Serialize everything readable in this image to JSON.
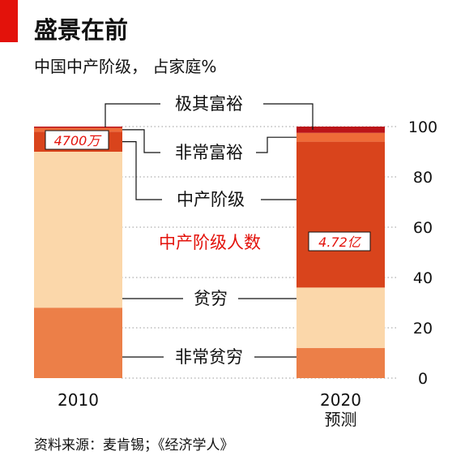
{
  "title": "盛景在前",
  "subtitle": "中国中产阶级，  占家庭%",
  "source": "资料来源：麦肯锡；《经济学人》",
  "colors": {
    "accent": "#e3120b",
    "very_poor": "#ec7f48",
    "poor": "#fbd7aa",
    "middle_class": "#d9441c",
    "very_affluent": "#ee6b38",
    "affluent": "#bb1419",
    "highlight_text": "#e3120b"
  },
  "chart_data": {
    "type": "bar",
    "stacked": true,
    "categories": [
      "2010",
      "2020\n预测"
    ],
    "category_labels": [
      [
        "2010"
      ],
      [
        "2020",
        "预测"
      ]
    ],
    "series": [
      {
        "name": "非常贫穷",
        "key": "very_poor",
        "values": [
          28,
          12
        ]
      },
      {
        "name": "贫穷",
        "key": "poor",
        "values": [
          62,
          24
        ]
      },
      {
        "name": "中产阶级",
        "key": "middle_class",
        "values": [
          8,
          58
        ]
      },
      {
        "name": "非常富裕",
        "key": "very_affluent",
        "values": [
          1.5,
          3.5
        ]
      },
      {
        "name": "极其富裕",
        "key": "affluent",
        "values": [
          0.5,
          2.5
        ]
      }
    ],
    "annotations": [
      {
        "label": "中产阶级人数",
        "values": [
          "4700万",
          "4.72亿"
        ]
      }
    ],
    "yticks": [
      0,
      20,
      40,
      60,
      80,
      100
    ],
    "ylim": [
      0,
      100
    ],
    "yaxis_side": "right",
    "grid": true
  }
}
